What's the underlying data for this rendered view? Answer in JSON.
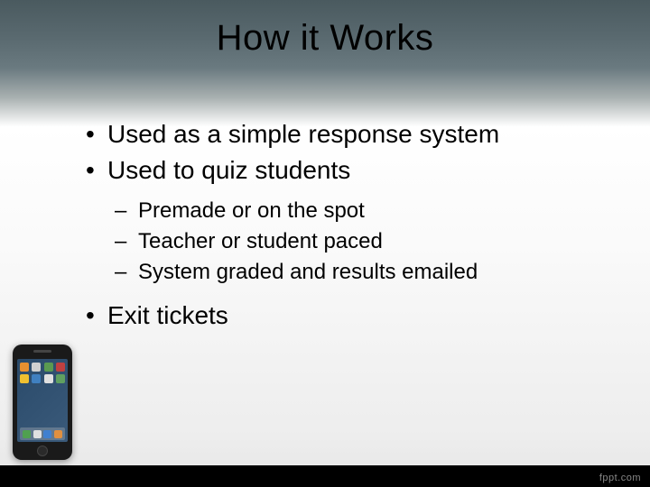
{
  "title": "How it Works",
  "bullets": {
    "item1": "Used as a simple response system",
    "item2": "Used to quiz students",
    "sub1": "Premade or on the spot",
    "sub2": "Teacher or student paced",
    "sub3": "System graded and results emailed",
    "item3": "Exit tickets"
  },
  "watermark": "fppt.com",
  "styling": {
    "background_gradient": [
      "#4a5a5f",
      "#5a6a70",
      "#6a7a80",
      "#a8b0b0",
      "#ffffff",
      "#fafafa",
      "#ededed",
      "#e5e5e5"
    ],
    "title_fontsize": 40,
    "title_color": "#000000",
    "bullet_l1_fontsize": 28,
    "bullet_l2_fontsize": 24,
    "text_color": "#000000",
    "bottom_bar_color": "#000000",
    "watermark_color": "#888888",
    "watermark_fontsize": 11,
    "slide_width": 720,
    "slide_height": 540,
    "font_family": "Arial"
  },
  "phone": {
    "body_color": "#1a1a1a",
    "screen_gradient": [
      "#2a4a6a",
      "#3a5a7a"
    ],
    "app_icon_colors": [
      "#e89030",
      "#d0d0d0",
      "#5a9a50",
      "#c04040",
      "#f0c030",
      "#4080c0",
      "#e0e0e0",
      "#60a060"
    ],
    "dock_icon_colors": [
      "#50a050",
      "#e0e0e0",
      "#4080d0",
      "#e09040"
    ]
  }
}
